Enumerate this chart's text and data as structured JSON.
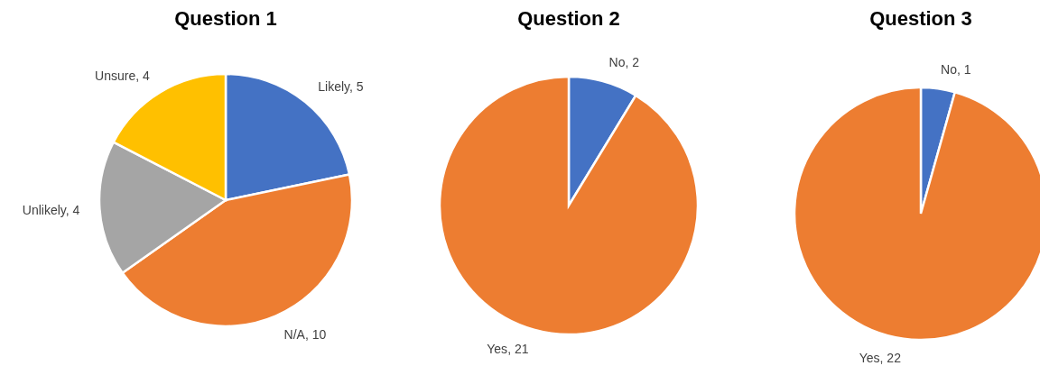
{
  "chart_data": [
    {
      "type": "pie",
      "title": "Question 1",
      "categories": [
        "Likely",
        "N/A",
        "Unlikely",
        "Unsure"
      ],
      "values": [
        5,
        10,
        4,
        4
      ],
      "colors": [
        "#4472c4",
        "#ed7d31",
        "#a5a5a5",
        "#ffc000"
      ],
      "value_labels": [
        ", 5",
        ", 10",
        ", 4",
        ", 4"
      ]
    },
    {
      "type": "pie",
      "title": "Question 2",
      "categories": [
        "No",
        "Yes"
      ],
      "values": [
        2,
        21
      ],
      "colors": [
        "#4472c4",
        "#ed7d31"
      ],
      "value_labels": [
        ", 2",
        ", 21"
      ]
    },
    {
      "type": "pie",
      "title": "Question 3",
      "categories": [
        "No",
        "Yes"
      ],
      "values": [
        1,
        22
      ],
      "colors": [
        "#4472c4",
        "#ed7d31"
      ],
      "value_labels": [
        ", 1",
        ", 22"
      ]
    }
  ]
}
